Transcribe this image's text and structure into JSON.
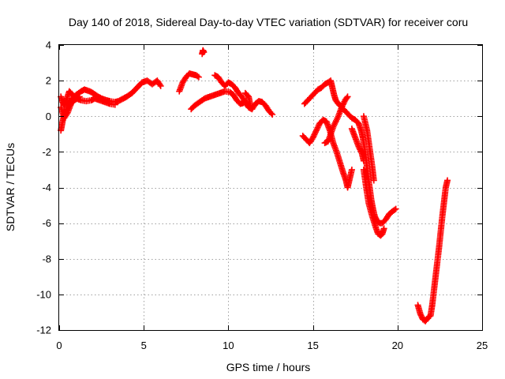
{
  "chart_data": {
    "type": "scatter",
    "title": "Day 140 of 2018, Sidereal Day-to-day VTEC variation (SDTVAR) for receiver coru",
    "xlabel": "GPS time / hours",
    "ylabel": "SDTVAR / TECUs",
    "xlim": [
      0,
      25
    ],
    "ylim": [
      -12,
      4
    ],
    "xticks": [
      0,
      5,
      10,
      15,
      20,
      25
    ],
    "yticks": [
      -12,
      -10,
      -8,
      -6,
      -4,
      -2,
      0,
      2,
      4
    ],
    "grid": true,
    "marker": "plus",
    "color": "#ff0000",
    "series": [
      {
        "segments": [
          [
            [
              0.1,
              -0.8
            ],
            [
              0.2,
              -0.3
            ],
            [
              0.3,
              0.1
            ],
            [
              0.4,
              0.3
            ],
            [
              0.5,
              0.6
            ],
            [
              0.6,
              0.8
            ],
            [
              0.8,
              1.0
            ],
            [
              1.0,
              1.2
            ],
            [
              1.3,
              1.4
            ],
            [
              1.5,
              1.5
            ],
            [
              1.8,
              1.4
            ],
            [
              2.0,
              1.3
            ],
            [
              2.3,
              1.1
            ],
            [
              2.5,
              1.0
            ],
            [
              2.8,
              0.9
            ],
            [
              3.0,
              0.85
            ],
            [
              3.3,
              0.8
            ],
            [
              3.5,
              0.85
            ],
            [
              3.8,
              1.0
            ],
            [
              4.0,
              1.1
            ],
            [
              4.3,
              1.3
            ],
            [
              4.6,
              1.6
            ],
            [
              4.9,
              1.9
            ],
            [
              5.2,
              2.0
            ],
            [
              5.5,
              1.8
            ],
            [
              5.8,
              2.0
            ],
            [
              6.0,
              1.7
            ]
          ],
          [
            [
              0.1,
              1.1
            ],
            [
              0.2,
              0.8
            ],
            [
              0.3,
              0.6
            ],
            [
              0.45,
              1.0
            ],
            [
              0.6,
              1.4
            ],
            [
              0.8,
              1.2
            ],
            [
              1.0,
              1.0
            ],
            [
              1.3,
              0.9
            ],
            [
              1.6,
              0.85
            ],
            [
              1.9,
              0.9
            ],
            [
              2.1,
              1.0
            ],
            [
              2.4,
              0.9
            ],
            [
              2.7,
              0.8
            ],
            [
              3.0,
              0.7
            ],
            [
              3.3,
              0.65
            ]
          ],
          [
            [
              0.1,
              0.5
            ],
            [
              0.3,
              -0.1
            ],
            [
              0.5,
              0.2
            ],
            [
              0.7,
              0.7
            ],
            [
              0.9,
              0.9
            ],
            [
              1.2,
              1.1
            ]
          ],
          [
            [
              7.1,
              1.4
            ],
            [
              7.3,
              1.9
            ],
            [
              7.5,
              2.2
            ],
            [
              7.7,
              2.4
            ],
            [
              7.9,
              2.35
            ],
            [
              8.1,
              2.3
            ],
            [
              8.25,
              2.2
            ]
          ],
          [
            [
              8.45,
              3.5
            ],
            [
              8.5,
              3.7
            ],
            [
              8.55,
              3.6
            ]
          ],
          [
            [
              7.8,
              0.4
            ],
            [
              8.0,
              0.6
            ],
            [
              8.3,
              0.8
            ],
            [
              8.6,
              1.0
            ],
            [
              8.9,
              1.1
            ],
            [
              9.2,
              1.2
            ],
            [
              9.5,
              1.3
            ],
            [
              9.8,
              1.4
            ],
            [
              10.1,
              1.35
            ],
            [
              10.3,
              1.2
            ],
            [
              10.5,
              0.9
            ],
            [
              10.7,
              0.7
            ],
            [
              10.9,
              0.75
            ]
          ],
          [
            [
              9.2,
              2.3
            ],
            [
              9.4,
              2.2
            ],
            [
              9.6,
              1.9
            ],
            [
              9.8,
              1.7
            ],
            [
              10.0,
              1.9
            ],
            [
              10.2,
              1.8
            ],
            [
              10.4,
              1.6
            ],
            [
              10.6,
              1.3
            ],
            [
              10.8,
              1.1
            ],
            [
              11.0,
              0.8
            ],
            [
              11.2,
              0.5
            ],
            [
              11.4,
              0.4
            ],
            [
              11.6,
              0.7
            ],
            [
              11.8,
              0.85
            ],
            [
              12.0,
              0.8
            ],
            [
              12.2,
              0.6
            ],
            [
              12.4,
              0.3
            ],
            [
              12.6,
              0.1
            ]
          ],
          [
            [
              11.0,
              1.3
            ],
            [
              11.2,
              1.1
            ],
            [
              11.3,
              0.6
            ]
          ],
          [
            [
              14.5,
              0.7
            ],
            [
              14.7,
              0.9
            ],
            [
              14.9,
              1.1
            ],
            [
              15.1,
              1.3
            ],
            [
              15.3,
              1.5
            ],
            [
              15.5,
              1.6
            ],
            [
              15.7,
              1.8
            ],
            [
              15.9,
              1.9
            ],
            [
              16.05,
              2.0
            ],
            [
              16.15,
              1.6
            ],
            [
              16.25,
              1.2
            ],
            [
              16.35,
              0.9
            ],
            [
              16.5,
              0.7
            ],
            [
              16.7,
              0.5
            ],
            [
              16.9,
              0.3
            ],
            [
              17.1,
              0.1
            ],
            [
              17.3,
              -0.1
            ],
            [
              17.5,
              -0.2
            ],
            [
              17.7,
              -0.4
            ],
            [
              17.85,
              -0.8
            ],
            [
              17.95,
              -1.2
            ],
            [
              18.05,
              -1.8
            ],
            [
              18.15,
              -2.5
            ],
            [
              18.25,
              -3.3
            ],
            [
              18.35,
              -4.0
            ],
            [
              18.45,
              -4.7
            ],
            [
              18.55,
              -5.2
            ],
            [
              18.65,
              -5.6
            ],
            [
              18.8,
              -5.9
            ],
            [
              18.95,
              -6.0
            ],
            [
              19.1,
              -6.0
            ],
            [
              19.3,
              -5.8
            ],
            [
              19.5,
              -5.5
            ],
            [
              19.75,
              -5.3
            ],
            [
              19.9,
              -5.2
            ]
          ],
          [
            [
              14.4,
              -1.1
            ],
            [
              14.6,
              -1.3
            ],
            [
              14.8,
              -1.5
            ],
            [
              15.0,
              -1.2
            ],
            [
              15.2,
              -0.8
            ],
            [
              15.4,
              -0.4
            ],
            [
              15.6,
              -0.2
            ],
            [
              15.8,
              -0.3
            ],
            [
              16.0,
              -0.8
            ],
            [
              16.2,
              -1.5
            ],
            [
              16.4,
              -2.0
            ],
            [
              16.6,
              -2.6
            ],
            [
              16.8,
              -3.2
            ],
            [
              16.95,
              -3.6
            ],
            [
              17.05,
              -4.0
            ],
            [
              17.15,
              -3.6
            ],
            [
              17.3,
              -3.0
            ]
          ],
          [
            [
              15.7,
              -1.5
            ],
            [
              15.9,
              -1.4
            ],
            [
              16.2,
              -0.6
            ],
            [
              16.5,
              0.0
            ],
            [
              16.7,
              0.5
            ],
            [
              16.9,
              0.9
            ],
            [
              17.05,
              1.1
            ]
          ],
          [
            [
              17.3,
              -0.7
            ],
            [
              17.5,
              -1.2
            ],
            [
              17.7,
              -1.7
            ],
            [
              17.9,
              -2.1
            ],
            [
              18.0,
              -2.5
            ]
          ],
          [
            [
              18.0,
              -3.0
            ],
            [
              18.15,
              -4.0
            ],
            [
              18.3,
              -4.9
            ],
            [
              18.5,
              -5.6
            ],
            [
              18.7,
              -6.2
            ],
            [
              18.85,
              -6.6
            ],
            [
              19.0,
              -6.7
            ],
            [
              19.1,
              -6.6
            ],
            [
              19.2,
              -6.3
            ]
          ],
          [
            [
              18.0,
              0.0
            ],
            [
              18.2,
              -0.8
            ],
            [
              18.35,
              -1.8
            ],
            [
              18.5,
              -2.8
            ],
            [
              18.6,
              -3.6
            ]
          ],
          [
            [
              21.2,
              -10.6
            ],
            [
              21.35,
              -11.1
            ],
            [
              21.5,
              -11.4
            ],
            [
              21.65,
              -11.5
            ],
            [
              21.8,
              -11.3
            ],
            [
              21.95,
              -11.2
            ],
            [
              22.05,
              -10.6
            ],
            [
              22.15,
              -9.8
            ],
            [
              22.25,
              -9.0
            ],
            [
              22.35,
              -8.2
            ],
            [
              22.45,
              -7.4
            ],
            [
              22.55,
              -6.5
            ],
            [
              22.65,
              -5.6
            ],
            [
              22.75,
              -4.8
            ],
            [
              22.85,
              -4.0
            ],
            [
              22.95,
              -3.6
            ]
          ]
        ]
      }
    ]
  }
}
